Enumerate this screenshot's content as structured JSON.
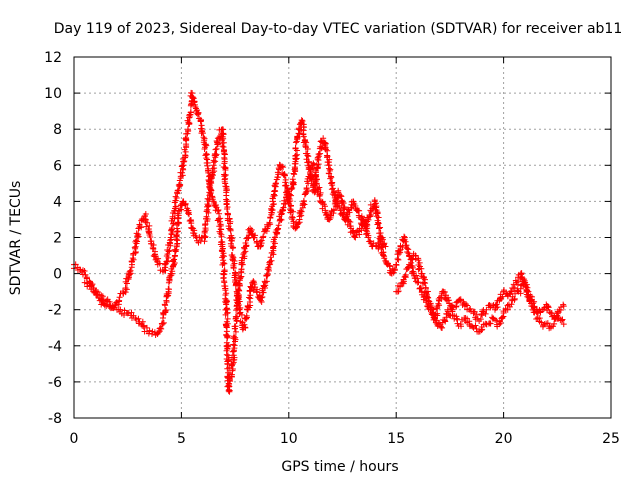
{
  "chart_data": {
    "type": "scatter",
    "title": "Day 119 of 2023, Sidereal Day-to-day VTEC variation (SDTVAR) for receiver ab11",
    "xlabel": "GPS time / hours",
    "ylabel": "SDTVAR / TECUs",
    "xlim": [
      0,
      25
    ],
    "ylim": [
      -8,
      12
    ],
    "xticks": [
      0,
      5,
      10,
      15,
      20,
      25
    ],
    "yticks": [
      -8,
      -6,
      -4,
      -2,
      0,
      2,
      4,
      6,
      8,
      10,
      12
    ],
    "grid": true,
    "marker": "+",
    "series": [
      {
        "name": "SDTVAR",
        "color": "#ff0000",
        "traces": [
          {
            "x": [
              0.0,
              0.3,
              0.6,
              0.9,
              1.2,
              1.5,
              1.8,
              2.1,
              2.4,
              2.7,
              3.0,
              3.3,
              3.6,
              3.9,
              4.2,
              4.5,
              4.8,
              5.1,
              5.3,
              5.5,
              5.7,
              5.9,
              6.1,
              6.3,
              6.5,
              6.7,
              6.9,
              7.1,
              7.2,
              7.4,
              7.6,
              7.8,
              8.0,
              8.2,
              8.4,
              8.6,
              8.8,
              9.0,
              9.2,
              9.4,
              9.6,
              9.8,
              10.0,
              10.2,
              10.4,
              10.6,
              10.8,
              11.0,
              11.2,
              11.4,
              11.6,
              11.8,
              12.0,
              12.2,
              12.4,
              12.6,
              12.8,
              13.0,
              13.2,
              13.4,
              13.6,
              13.8,
              14.0,
              14.2,
              14.4,
              14.6,
              14.8,
              15.0,
              15.2,
              15.4,
              15.6,
              15.8,
              16.0,
              16.2,
              16.4,
              16.6,
              16.8,
              17.0,
              17.2,
              17.4,
              17.6,
              17.8,
              18.0,
              18.2,
              18.4,
              18.6,
              18.8,
              19.0,
              19.2,
              19.4,
              19.6,
              19.8,
              20.0,
              20.2,
              20.4,
              20.6,
              20.8,
              21.0,
              21.2,
              21.4,
              21.6,
              21.8,
              22.0,
              22.2,
              22.4,
              22.6,
              22.8
            ],
            "y": [
              0.5,
              0.2,
              -0.2,
              -0.8,
              -1.5,
              -1.8,
              -1.9,
              -1.5,
              -0.8,
              0.5,
              2.5,
              3.2,
              1.8,
              0.5,
              0.2,
              2.0,
              4.5,
              6.0,
              8.0,
              10.0,
              9.0,
              8.5,
              7.0,
              5.0,
              4.0,
              3.5,
              1.5,
              -2.0,
              -6.5,
              -5.0,
              -1.5,
              0.5,
              1.5,
              2.5,
              2.0,
              1.5,
              2.0,
              2.5,
              3.5,
              5.0,
              6.0,
              5.5,
              4.0,
              5.0,
              7.5,
              8.5,
              7.0,
              5.5,
              4.5,
              6.5,
              7.5,
              6.5,
              5.0,
              4.0,
              3.5,
              3.0,
              3.5,
              4.0,
              3.5,
              3.0,
              2.5,
              3.5,
              4.0,
              2.5,
              1.0,
              0.5,
              0.0,
              0.5,
              1.5,
              2.0,
              1.0,
              0.0,
              -0.5,
              -1.0,
              -1.5,
              -2.0,
              -2.5,
              -1.5,
              -1.0,
              -1.5,
              -2.0,
              -1.8,
              -1.5,
              -1.8,
              -2.0,
              -2.2,
              -2.5,
              -2.3,
              -2.0,
              -1.8,
              -2.0,
              -1.5,
              -1.0,
              -1.2,
              -0.8,
              -0.5,
              0.0,
              -0.5,
              -1.5,
              -2.0,
              -2.2,
              -2.0,
              -1.8,
              -2.2,
              -2.5,
              -2.0,
              -1.8
            ]
          },
          {
            "x": [
              0.5,
              1.0,
              1.5,
              2.0,
              2.5,
              3.0,
              3.4,
              3.8,
              4.1,
              4.3,
              4.5,
              4.7,
              4.9,
              5.1,
              5.3,
              5.5,
              5.7,
              5.9,
              6.1,
              6.3,
              6.5,
              6.7,
              6.9,
              7.1,
              7.3,
              7.5,
              7.7,
              7.9,
              8.1,
              8.3,
              8.5,
              8.7,
              8.9,
              9.1,
              9.3,
              9.5,
              9.7,
              9.9,
              10.1,
              10.3,
              10.5,
              10.7,
              10.9,
              11.1,
              11.3,
              11.5,
              11.7,
              11.9,
              12.1,
              12.3,
              12.5,
              12.7,
              12.9,
              13.1,
              13.3,
              13.5,
              13.7,
              13.9,
              14.1,
              14.3,
              14.5
            ],
            "y": [
              -0.5,
              -1.0,
              -1.5,
              -2.0,
              -2.2,
              -2.5,
              -3.2,
              -3.4,
              -2.8,
              -1.5,
              0.0,
              1.0,
              3.5,
              4.0,
              3.5,
              2.5,
              2.0,
              1.8,
              2.0,
              4.5,
              6.0,
              7.5,
              8.0,
              4.0,
              2.0,
              0.0,
              -2.0,
              -3.0,
              -2.0,
              -0.5,
              -1.0,
              -1.5,
              -0.5,
              0.5,
              1.5,
              2.5,
              3.5,
              4.5,
              3.5,
              2.5,
              3.0,
              4.0,
              5.0,
              6.0,
              5.0,
              4.0,
              3.5,
              3.0,
              3.5,
              4.5,
              4.0,
              3.0,
              2.5,
              2.0,
              2.5,
              3.0,
              2.0,
              1.5,
              1.5,
              2.0,
              1.5
            ]
          },
          {
            "x": [
              15.0,
              15.3,
              15.6,
              15.9,
              16.2,
              16.5,
              16.8,
              17.1,
              17.4,
              17.7,
              18.0,
              18.3,
              18.6,
              18.9,
              19.2,
              19.5,
              19.8,
              20.1,
              20.4,
              20.7,
              21.0,
              21.3,
              21.6,
              21.9,
              22.2,
              22.5,
              22.8
            ],
            "y": [
              -1.0,
              -0.5,
              0.5,
              1.0,
              0.0,
              -1.5,
              -2.5,
              -3.0,
              -2.0,
              -2.5,
              -2.8,
              -2.5,
              -3.0,
              -3.2,
              -2.8,
              -2.5,
              -2.8,
              -2.0,
              -1.5,
              -1.0,
              -0.5,
              -1.5,
              -2.5,
              -2.8,
              -3.0,
              -2.5,
              -2.8
            ]
          }
        ]
      }
    ]
  }
}
